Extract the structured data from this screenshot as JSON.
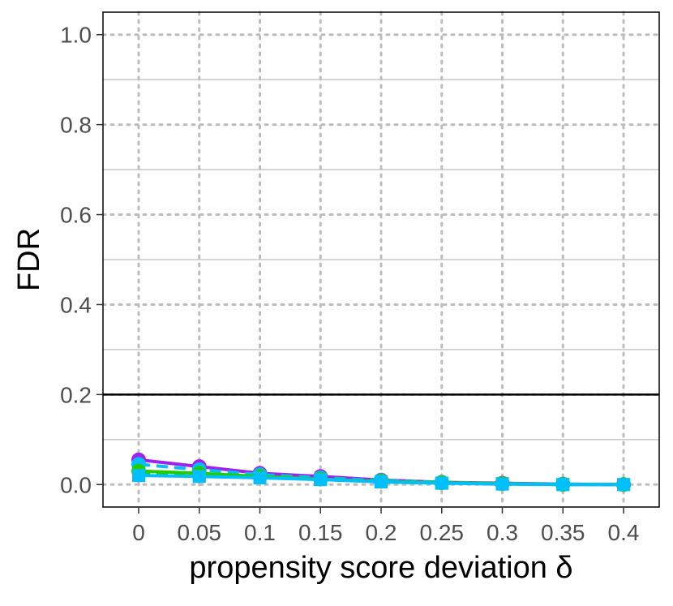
{
  "chart_data": {
    "type": "line",
    "title": "",
    "xlabel": "propensity score deviation δ",
    "ylabel": "FDR",
    "x": [
      0,
      0.05,
      0.1,
      0.15,
      0.2,
      0.25,
      0.3,
      0.35,
      0.4
    ],
    "x_tick_labels": [
      "0",
      "0.05",
      "0.1",
      "0.15",
      "0.2",
      "0.25",
      "0.3",
      "0.35",
      "0.4"
    ],
    "y_ticks": [
      0.0,
      0.2,
      0.4,
      0.6,
      0.8,
      1.0
    ],
    "y_tick_labels": [
      "0.0",
      "0.2",
      "0.4",
      "0.6",
      "0.8",
      "1.0"
    ],
    "ylim": [
      -0.05,
      1.05
    ],
    "grid": true,
    "reference_line": {
      "y": 0.2,
      "color": "#000000"
    },
    "series": [
      {
        "color": "#a020f0",
        "marker": "circle",
        "dash": "solid",
        "values": [
          0.055,
          0.04,
          0.025,
          0.018,
          0.01,
          0.005,
          0.003,
          0.001,
          0.0
        ]
      },
      {
        "color": "#00bfff",
        "marker": "circle",
        "dash": "dashed",
        "values": [
          0.045,
          0.033,
          0.022,
          0.015,
          0.009,
          0.005,
          0.002,
          0.001,
          0.0
        ]
      },
      {
        "color": "#22cc00",
        "marker": "circle",
        "dash": "solid",
        "values": [
          0.03,
          0.025,
          0.018,
          0.012,
          0.007,
          0.004,
          0.002,
          0.0,
          0.0
        ]
      },
      {
        "color": "#22cc00",
        "marker": "square",
        "dash": "dashed",
        "values": [
          0.025,
          0.02,
          0.015,
          0.012,
          0.006,
          0.003,
          0.002,
          0.0,
          0.0
        ]
      },
      {
        "color": "#00bfff",
        "marker": "square",
        "dash": "solid",
        "values": [
          0.02,
          0.018,
          0.015,
          0.011,
          0.006,
          0.003,
          0.001,
          0.0,
          0.0
        ]
      }
    ]
  }
}
